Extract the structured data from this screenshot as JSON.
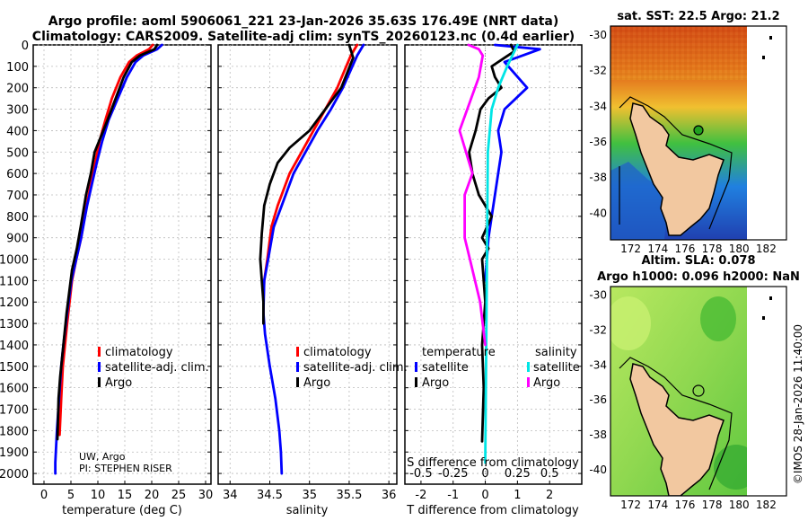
{
  "header": {
    "title_line1": "Argo profile: aoml 5906061_221 23-Jan-2026 35.63S 176.49E (NRT data)",
    "title_line2": "Climatology: CARS2009. Satellite-adj clim: synTS_20260123.nc (0.4d earlier)"
  },
  "colors": {
    "climatology": "#ff0000",
    "satellite_adj": "#0000ff",
    "argo": "#000000",
    "sat_salinity": "#00e5e5",
    "argo_salinity_diff": "#ff00ff",
    "land": "#f2c8a0"
  },
  "chart_data": [
    {
      "type": "line",
      "name": "temperature",
      "xlabel": "temperature (deg C)",
      "ylabel": "",
      "xlim": [
        -2,
        31
      ],
      "ylim": [
        2050,
        0
      ],
      "xticks": [
        0,
        5,
        10,
        15,
        20,
        25,
        30
      ],
      "yticks": [
        0,
        100,
        200,
        300,
        400,
        500,
        600,
        700,
        800,
        900,
        1000,
        1100,
        1200,
        1300,
        1400,
        1500,
        1600,
        1700,
        1800,
        1900,
        2000
      ],
      "legend": [
        "climatology",
        "satellite-adj. clim.",
        "Argo"
      ],
      "legend_position": "lower-right",
      "annotation": [
        "UW, Argo",
        "PI: STEPHEN RISER"
      ],
      "series": [
        {
          "name": "climatology",
          "color": "#ff0000",
          "x": [
            20.2,
            19.5,
            17.2,
            15.8,
            14.2,
            12.6,
            11.4,
            10.3,
            9.5,
            8.7,
            7.9,
            6.9,
            6.0,
            5.2,
            4.3,
            3.9,
            3.5,
            3.2,
            2.9
          ],
          "y": [
            0,
            20,
            50,
            80,
            150,
            250,
            350,
            450,
            550,
            650,
            750,
            900,
            1000,
            1100,
            1300,
            1400,
            1500,
            1650,
            1820
          ]
        },
        {
          "name": "satellite-adj. clim.",
          "color": "#0000ff",
          "x": [
            21.9,
            21.0,
            18.4,
            17.0,
            15.4,
            13.7,
            12.0,
            10.8,
            9.8,
            8.9,
            8.0,
            6.9,
            6.0,
            5.1,
            4.3,
            3.6,
            3.2,
            2.8,
            2.4,
            2.1,
            2.1
          ],
          "y": [
            0,
            20,
            50,
            80,
            150,
            250,
            350,
            450,
            550,
            650,
            750,
            900,
            1000,
            1100,
            1250,
            1400,
            1500,
            1650,
            1800,
            1950,
            2000
          ]
        },
        {
          "name": "Argo",
          "color": "#000000",
          "x": [
            21.0,
            20.5,
            17.8,
            16.3,
            14.8,
            13.3,
            11.8,
            10.7,
            9.4,
            8.7,
            7.8,
            6.8,
            6.1,
            5.2,
            4.2,
            3.8,
            3.4,
            3.0,
            2.7,
            2.6,
            2.5
          ],
          "y": [
            0,
            20,
            50,
            80,
            150,
            250,
            350,
            420,
            500,
            600,
            700,
            850,
            950,
            1050,
            1250,
            1350,
            1450,
            1550,
            1650,
            1750,
            1840
          ]
        }
      ]
    },
    {
      "type": "line",
      "name": "salinity",
      "xlabel": "salinity",
      "ylabel": "",
      "xlim": [
        33.85,
        36.1
      ],
      "ylim": [
        2050,
        0
      ],
      "xticks": [
        34,
        34.5,
        35,
        35.5,
        36
      ],
      "legend": [
        "climatology",
        "satellite-adj. clim.",
        "Argo"
      ],
      "legend_position": "lower-right",
      "series": [
        {
          "name": "climatology",
          "color": "#ff0000",
          "x": [
            35.6,
            35.52,
            35.35,
            35.2,
            35.05,
            34.9,
            34.75,
            34.6,
            34.52,
            34.47,
            34.43,
            34.42,
            34.42
          ],
          "y": [
            0,
            50,
            200,
            300,
            400,
            500,
            600,
            750,
            850,
            1000,
            1100,
            1200,
            1300
          ]
        },
        {
          "name": "satellite-adj. clim.",
          "color": "#0000ff",
          "x": [
            35.68,
            35.6,
            35.42,
            35.27,
            35.1,
            34.95,
            34.8,
            34.65,
            34.55,
            34.48,
            34.43,
            34.42,
            34.44,
            34.5,
            34.57,
            34.62,
            34.64,
            34.65
          ],
          "y": [
            0,
            50,
            200,
            300,
            400,
            500,
            600,
            750,
            850,
            1000,
            1100,
            1250,
            1350,
            1500,
            1650,
            1800,
            1900,
            2000
          ]
        },
        {
          "name": "Argo",
          "color": "#000000",
          "x": [
            35.5,
            35.55,
            35.4,
            35.2,
            35.0,
            34.75,
            34.6,
            34.5,
            34.43,
            34.4,
            34.38,
            34.4,
            34.42,
            34.42
          ],
          "y": [
            0,
            60,
            200,
            300,
            400,
            480,
            550,
            650,
            750,
            880,
            1000,
            1100,
            1200,
            1300
          ]
        }
      ]
    },
    {
      "type": "line",
      "name": "difference from climatology",
      "xlabel": "T difference from climatology",
      "x2label": "S difference from climatology",
      "xlim": [
        -2.5,
        3.0
      ],
      "ylim": [
        2050,
        0
      ],
      "xticks": [
        -2,
        -1,
        0,
        1,
        2
      ],
      "x2ticks": [
        -0.5,
        -0.25,
        0,
        0.25,
        0.5
      ],
      "x2tick_labels": [
        "-0.5",
        "-0.25",
        "0",
        "0.25",
        "0.5"
      ],
      "legend_left_title": "temperature",
      "legend_right_title": "salinity",
      "legend_left": [
        "satellite",
        "Argo"
      ],
      "legend_right": [
        "satellite",
        "Argo"
      ],
      "series": [
        {
          "name": "T satellite",
          "color": "#0000ff",
          "x": [
            0.3,
            1.7,
            0.6,
            1.3,
            0.6,
            0.4,
            0.5,
            0.4,
            0.3,
            0.2,
            0.1,
            0.05,
            0.0
          ],
          "y": [
            0,
            20,
            80,
            200,
            300,
            400,
            500,
            600,
            700,
            800,
            900,
            1000,
            1100
          ]
        },
        {
          "name": "T Argo",
          "color": "#000000",
          "x": [
            0.8,
            0.9,
            0.6,
            0.2,
            0.3,
            0.5,
            0.1,
            -0.15,
            -0.3,
            -0.5,
            -0.4,
            -0.2,
            0.2,
            -0.1,
            0.1,
            -0.1,
            0.0,
            -0.1,
            -0.05,
            -0.1
          ],
          "y": [
            0,
            30,
            60,
            100,
            150,
            200,
            250,
            300,
            400,
            500,
            600,
            700,
            800,
            900,
            950,
            1000,
            1200,
            1400,
            1600,
            1850
          ]
        },
        {
          "name": "S satellite",
          "color": "#00e5e5",
          "x": [
            0.25,
            0.17,
            0.1,
            0.05,
            0.02,
            0.0
          ],
          "y": [
            0,
            100,
            200,
            300,
            500,
            1950
          ]
        },
        {
          "name": "S Argo",
          "color": "#ff00ff",
          "x": [
            -0.13,
            -0.05,
            -0.02,
            -0.05,
            -0.2,
            -0.1,
            -0.16,
            -0.16,
            -0.12,
            -0.08,
            -0.04,
            0.0
          ],
          "y": [
            0,
            20,
            50,
            150,
            400,
            600,
            700,
            900,
            1000,
            1100,
            1200,
            1400
          ]
        }
      ]
    },
    {
      "type": "heatmap",
      "name": "satellite SST map",
      "title": "sat. SST: 22.5 Argo: 21.2",
      "xticks": [
        172,
        174,
        176,
        178,
        180,
        182
      ],
      "yticks": [
        -30,
        -32,
        -34,
        -36,
        -38,
        -40
      ],
      "xlim": [
        170.5,
        183.5
      ],
      "ylim": [
        -41.5,
        -29.5
      ],
      "float_marker": {
        "lon": 176.49,
        "lat": -35.63
      }
    },
    {
      "type": "heatmap",
      "name": "altimeter SLA map",
      "title_line1": "Altim. SLA: 0.078",
      "title_line2": "Argo h1000: 0.096 h2000: NaN",
      "xticks": [
        172,
        174,
        176,
        178,
        180,
        182
      ],
      "yticks": [
        -30,
        -32,
        -34,
        -36,
        -38,
        -40
      ],
      "xlim": [
        170.5,
        183.5
      ],
      "ylim": [
        -41.5,
        -29.5
      ],
      "float_marker": {
        "lon": 176.49,
        "lat": -35.63
      }
    }
  ],
  "credit": "©IMOS 28-Jan-2026 11:40:00"
}
